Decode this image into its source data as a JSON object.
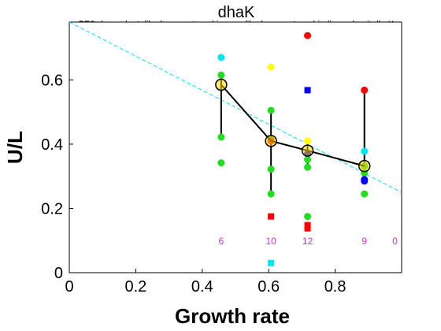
{
  "chart_data": {
    "type": "scatter",
    "title": "dhaK",
    "subtitle": "PTS-dependent dihydroxyacetone kinase- dihydroxyacetone-binding subunit dhaK",
    "xlabel": "Growth rate",
    "ylabel": "U/L",
    "xlim": [
      0,
      1.0
    ],
    "ylim": [
      0,
      0.78
    ],
    "xticks": [
      0,
      0.2,
      0.4,
      0.6,
      0.8
    ],
    "xtick_labels": [
      "0",
      "0.2",
      "0.4",
      "0.6",
      "0.8"
    ],
    "yticks": [
      0,
      0.2,
      0.4,
      0.6
    ],
    "ytick_labels": [
      "0",
      "0.2",
      "0.4",
      "0.6"
    ],
    "grid": false,
    "trend_line": {
      "color": "#00e5ee",
      "style": "dashed",
      "x": [
        0,
        1.0
      ],
      "y": [
        0.78,
        0.25
      ]
    },
    "mean_series": {
      "color": "#000000",
      "x": [
        0.457,
        0.607,
        0.717,
        0.888
      ],
      "y": [
        0.585,
        0.41,
        0.38,
        0.332
      ],
      "marker_color": "#ffd700"
    },
    "error_bars": [
      {
        "x": 0.457,
        "low": 0.422,
        "high": 0.615
      },
      {
        "x": 0.607,
        "low": 0.245,
        "high": 0.505
      },
      {
        "x": 0.717,
        "low": 0.328,
        "high": 0.41
      },
      {
        "x": 0.888,
        "low": 0.29,
        "high": 0.568
      }
    ],
    "points": [
      {
        "x": 0.457,
        "y": 0.67,
        "color": "#00e5ee",
        "shape": "circle"
      },
      {
        "x": 0.457,
        "y": 0.615,
        "color": "#22dd22",
        "shape": "circle"
      },
      {
        "x": 0.457,
        "y": 0.422,
        "color": "#22dd22",
        "shape": "circle"
      },
      {
        "x": 0.457,
        "y": 0.342,
        "color": "#22dd22",
        "shape": "circle"
      },
      {
        "x": 0.607,
        "y": 0.64,
        "color": "#ffff00",
        "shape": "circle"
      },
      {
        "x": 0.607,
        "y": 0.505,
        "color": "#22dd22",
        "shape": "circle"
      },
      {
        "x": 0.607,
        "y": 0.415,
        "color": "#22dd22",
        "shape": "circle"
      },
      {
        "x": 0.607,
        "y": 0.41,
        "color": "#ff0000",
        "shape": "circle"
      },
      {
        "x": 0.607,
        "y": 0.322,
        "color": "#22dd22",
        "shape": "circle"
      },
      {
        "x": 0.607,
        "y": 0.245,
        "color": "#22dd22",
        "shape": "circle"
      },
      {
        "x": 0.607,
        "y": 0.175,
        "color": "#ff0000",
        "shape": "square"
      },
      {
        "x": 0.607,
        "y": 0.03,
        "color": "#00e5ee",
        "shape": "square"
      },
      {
        "x": 0.717,
        "y": 0.738,
        "color": "#ff0000",
        "shape": "circle"
      },
      {
        "x": 0.717,
        "y": 0.568,
        "color": "#0000ff",
        "shape": "square"
      },
      {
        "x": 0.717,
        "y": 0.41,
        "color": "#ffff00",
        "shape": "circle"
      },
      {
        "x": 0.717,
        "y": 0.37,
        "color": "#0000ff",
        "shape": "circle"
      },
      {
        "x": 0.717,
        "y": 0.352,
        "color": "#22dd22",
        "shape": "circle"
      },
      {
        "x": 0.717,
        "y": 0.328,
        "color": "#22dd22",
        "shape": "circle"
      },
      {
        "x": 0.717,
        "y": 0.175,
        "color": "#22dd22",
        "shape": "circle"
      },
      {
        "x": 0.717,
        "y": 0.148,
        "color": "#ff0000",
        "shape": "square"
      },
      {
        "x": 0.717,
        "y": 0.138,
        "color": "#ff0000",
        "shape": "square"
      },
      {
        "x": 0.888,
        "y": 0.568,
        "color": "#ff0000",
        "shape": "circle"
      },
      {
        "x": 0.888,
        "y": 0.378,
        "color": "#00e5ee",
        "shape": "circle"
      },
      {
        "x": 0.888,
        "y": 0.332,
        "color": "#22dd22",
        "shape": "circle"
      },
      {
        "x": 0.888,
        "y": 0.31,
        "color": "#22dd22",
        "shape": "circle"
      },
      {
        "x": 0.888,
        "y": 0.29,
        "color": "#0000ff",
        "shape": "circle"
      },
      {
        "x": 0.888,
        "y": 0.285,
        "color": "#0000ff",
        "shape": "circle"
      },
      {
        "x": 0.888,
        "y": 0.245,
        "color": "#22dd22",
        "shape": "circle"
      }
    ],
    "counts": [
      {
        "x": 0.457,
        "label": "6"
      },
      {
        "x": 0.607,
        "label": "10"
      },
      {
        "x": 0.717,
        "label": "12"
      },
      {
        "x": 0.888,
        "label": "9"
      },
      {
        "x": 0.98,
        "label": "0"
      }
    ]
  }
}
